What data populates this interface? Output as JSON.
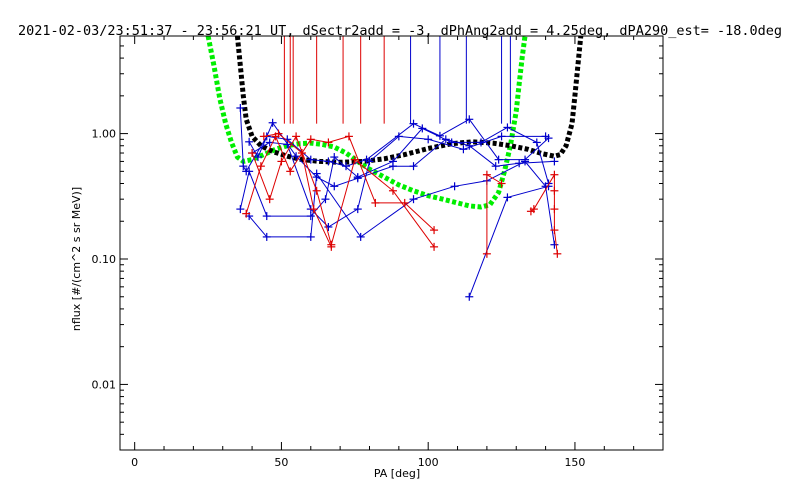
{
  "chart_data": {
    "type": "scatter",
    "title": "2021-02-03/23:51:37 - 23:56:21 UT, dSectr2add = -3, dPhAng2add = 4.25deg, dPA290_est= -18.0deg",
    "xlabel": "PA [deg]",
    "ylabel": "nflux [#/(cm^2 s sr MeV)]",
    "xlim": [
      -5,
      180
    ],
    "ylim": [
      0.003,
      6
    ],
    "yscale": "log",
    "x_ticks": [
      0,
      50,
      100,
      150
    ],
    "x_tick_labels": [
      "0",
      "50",
      "100",
      "150"
    ],
    "y_ticks": [
      0.01,
      0.1,
      1.0
    ],
    "y_tick_labels": [
      "0.01",
      "0.10",
      "1.00"
    ],
    "grid": false,
    "colors": {
      "blue": "#0000cc",
      "red": "#dd0000",
      "green": "#00ee00",
      "black": "#000000"
    },
    "vlines": {
      "red": [
        51,
        53,
        54,
        62,
        71,
        77,
        85
      ],
      "blue": [
        94,
        104,
        113,
        125,
        128
      ]
    },
    "series": [
      {
        "color": "blue",
        "points": [
          [
            36,
            1.6
          ],
          [
            37,
            0.55
          ],
          [
            38,
            0.5
          ],
          [
            45,
            0.95
          ],
          [
            52,
            0.9
          ],
          [
            60,
            0.62
          ],
          [
            66,
            0.6
          ],
          [
            72,
            0.55
          ],
          [
            79,
            0.62
          ],
          [
            95,
            1.2
          ],
          [
            104,
            0.96
          ],
          [
            114,
            1.3
          ],
          [
            124,
            0.62
          ],
          [
            133,
            0.62
          ],
          [
            141,
            0.92
          ]
        ]
      },
      {
        "color": "blue",
        "points": [
          [
            39,
            0.86
          ],
          [
            42,
            0.65
          ],
          [
            47,
            1.22
          ],
          [
            55,
            0.66
          ],
          [
            62,
            0.45
          ],
          [
            68,
            0.38
          ],
          [
            76,
            0.44
          ],
          [
            88,
            0.55
          ],
          [
            95,
            0.55
          ],
          [
            106,
            0.9
          ],
          [
            114,
            0.8
          ],
          [
            123,
            0.55
          ],
          [
            131,
            0.58
          ],
          [
            143,
            0.6
          ]
        ]
      },
      {
        "color": "blue",
        "points": [
          [
            36,
            0.25
          ],
          [
            39,
            0.5
          ],
          [
            45,
            0.22
          ],
          [
            60,
            0.22
          ],
          [
            65,
            0.3
          ],
          [
            68,
            0.65
          ],
          [
            76,
            0.45
          ],
          [
            88,
            0.6
          ],
          [
            98,
            1.1
          ],
          [
            108,
            0.85
          ],
          [
            118,
            0.85
          ],
          [
            127,
            1.12
          ],
          [
            137,
            0.85
          ],
          [
            141,
            0.4
          ]
        ]
      },
      {
        "color": "blue",
        "points": [
          [
            39,
            0.22
          ],
          [
            45,
            0.15
          ],
          [
            60,
            0.15
          ],
          [
            62,
            0.48
          ],
          [
            77,
            0.15
          ],
          [
            95,
            0.3
          ],
          [
            109,
            0.38
          ],
          [
            120,
            0.42
          ],
          [
            133,
            0.6
          ],
          [
            140,
            0.38
          ],
          [
            143,
            0.13
          ]
        ]
      },
      {
        "color": "blue",
        "points": [
          [
            114,
            0.05
          ],
          [
            127,
            0.31
          ],
          [
            141,
            0.38
          ]
        ]
      },
      {
        "color": "blue",
        "points": [
          [
            40,
            0.7
          ],
          [
            46,
            0.85
          ],
          [
            52,
            0.82
          ],
          [
            60,
            0.25
          ],
          [
            66,
            0.18
          ],
          [
            76,
            0.25
          ],
          [
            80,
            0.6
          ],
          [
            90,
            0.95
          ],
          [
            100,
            0.9
          ],
          [
            112,
            0.75
          ],
          [
            125,
            0.95
          ],
          [
            140,
            0.95
          ]
        ]
      },
      {
        "color": "red",
        "points": [
          [
            38,
            0.23
          ],
          [
            43,
            0.55
          ],
          [
            48,
            0.95
          ],
          [
            53,
            0.5
          ],
          [
            60,
            0.9
          ],
          [
            66,
            0.85
          ],
          [
            73,
            0.95
          ],
          [
            82,
            0.28
          ],
          [
            92,
            0.28
          ],
          [
            102,
            0.17
          ]
        ]
      },
      {
        "color": "red",
        "points": [
          [
            40,
            0.7
          ],
          [
            46,
            0.3
          ],
          [
            50,
            0.6
          ],
          [
            55,
            0.95
          ],
          [
            62,
            0.35
          ],
          [
            67,
            0.13
          ],
          [
            75,
            0.62
          ],
          [
            88,
            0.35
          ],
          [
            102,
            0.125
          ]
        ]
      },
      {
        "color": "red",
        "points": [
          [
            44,
            0.95
          ],
          [
            49,
            1.0
          ],
          [
            57,
            0.7
          ],
          [
            61,
            0.25
          ],
          [
            67,
            0.125
          ]
        ]
      },
      {
        "color": "red",
        "points": [
          [
            120,
            0.11
          ],
          [
            120,
            0.47
          ],
          [
            125,
            0.4
          ]
        ]
      },
      {
        "color": "red",
        "points": [
          [
            135,
            0.24
          ],
          [
            136,
            0.25
          ],
          [
            143,
            0.47
          ],
          [
            143,
            0.35
          ],
          [
            143,
            0.25
          ],
          [
            143,
            0.17
          ],
          [
            144,
            0.11
          ]
        ]
      }
    ],
    "curves": {
      "green": [
        [
          25,
          6.0
        ],
        [
          27,
          3.5
        ],
        [
          29,
          1.9
        ],
        [
          31,
          1.2
        ],
        [
          33,
          0.85
        ],
        [
          35,
          0.65
        ],
        [
          37,
          0.6
        ],
        [
          40,
          0.62
        ],
        [
          44,
          0.68
        ],
        [
          48,
          0.75
        ],
        [
          52,
          0.8
        ],
        [
          56,
          0.83
        ],
        [
          60,
          0.84
        ],
        [
          64,
          0.82
        ],
        [
          68,
          0.78
        ],
        [
          72,
          0.7
        ],
        [
          76,
          0.6
        ],
        [
          80,
          0.52
        ],
        [
          85,
          0.45
        ],
        [
          90,
          0.39
        ],
        [
          95,
          0.35
        ],
        [
          100,
          0.32
        ],
        [
          105,
          0.3
        ],
        [
          110,
          0.28
        ],
        [
          114,
          0.265
        ],
        [
          118,
          0.26
        ],
        [
          121,
          0.27
        ],
        [
          124,
          0.34
        ],
        [
          126,
          0.5
        ],
        [
          128,
          0.8
        ],
        [
          130,
          1.5
        ],
        [
          131,
          2.5
        ],
        [
          132,
          4.0
        ],
        [
          133,
          6.0
        ]
      ],
      "black": [
        [
          35,
          6.0
        ],
        [
          36,
          3.5
        ],
        [
          37,
          2.0
        ],
        [
          38,
          1.3
        ],
        [
          40,
          0.95
        ],
        [
          43,
          0.8
        ],
        [
          47,
          0.72
        ],
        [
          52,
          0.66
        ],
        [
          57,
          0.62
        ],
        [
          63,
          0.6
        ],
        [
          70,
          0.59
        ],
        [
          78,
          0.6
        ],
        [
          85,
          0.63
        ],
        [
          92,
          0.68
        ],
        [
          100,
          0.76
        ],
        [
          108,
          0.83
        ],
        [
          115,
          0.86
        ],
        [
          122,
          0.84
        ],
        [
          128,
          0.8
        ],
        [
          134,
          0.75
        ],
        [
          139,
          0.69
        ],
        [
          143,
          0.66
        ],
        [
          145,
          0.68
        ],
        [
          147,
          0.8
        ],
        [
          149,
          1.2
        ],
        [
          150,
          2.0
        ],
        [
          151,
          3.5
        ],
        [
          152,
          6.0
        ]
      ]
    }
  }
}
